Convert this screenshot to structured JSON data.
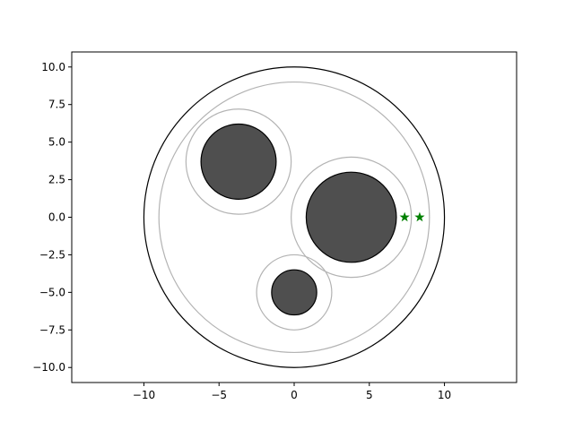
{
  "chart_data": {
    "type": "scatter",
    "title": "",
    "xlabel": "",
    "ylabel": "",
    "xlim": [
      -14.8,
      14.8
    ],
    "ylim": [
      -11.0,
      11.0
    ],
    "x_ticks": [
      -10,
      -5,
      0,
      5,
      10
    ],
    "x_tick_labels": [
      "−10",
      "−5",
      "0",
      "5",
      "10"
    ],
    "y_ticks": [
      -10.0,
      -7.5,
      -5.0,
      -2.5,
      0.0,
      2.5,
      5.0,
      7.5,
      10.0
    ],
    "y_tick_labels": [
      "−10.0",
      "−7.5",
      "−5.0",
      "−2.5",
      "0.0",
      "2.5",
      "5.0",
      "7.5",
      "10.0"
    ],
    "grid": false,
    "colors": {
      "outer_circle": "#000000",
      "offset_circle": "#b3b3b3",
      "disk_fill": "#4f4f4f",
      "disk_edge": "#000000",
      "star": "#008000",
      "axes": "#000000"
    },
    "outer_circle": {
      "cx": 0,
      "cy": 0,
      "r": 10
    },
    "inner_offset_circle": {
      "cx": 0,
      "cy": 0,
      "r": 9
    },
    "disks": [
      {
        "cx": -3.7,
        "cy": 3.7,
        "r": 2.5,
        "offset_r": 3.5
      },
      {
        "cx": 3.8,
        "cy": 0.0,
        "r": 3.0,
        "offset_r": 4.0
      },
      {
        "cx": 0.0,
        "cy": -5.0,
        "r": 1.5,
        "offset_r": 2.5
      }
    ],
    "markers": {
      "shape": "star",
      "points": [
        {
          "x": 7.35,
          "y": 0.0
        },
        {
          "x": 8.35,
          "y": 0.0
        }
      ]
    }
  }
}
